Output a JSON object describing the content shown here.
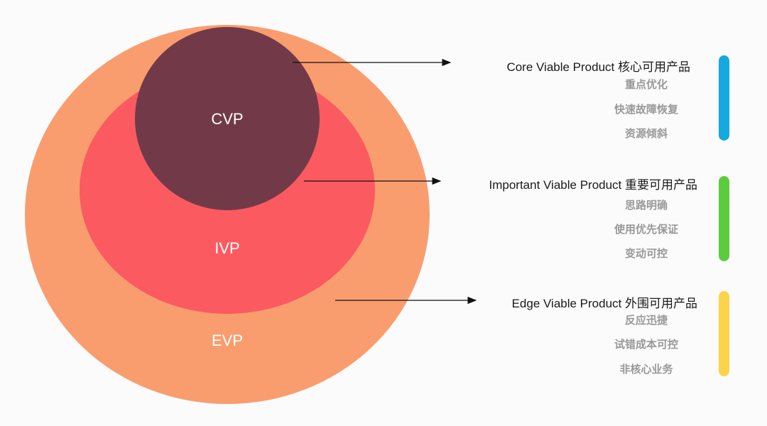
{
  "circles": [
    {
      "label": "EVP",
      "color": "#f99d6f"
    },
    {
      "label": "IVP",
      "color": "#fb5a60"
    },
    {
      "label": "CVP",
      "color": "#723a48"
    }
  ],
  "groups": [
    {
      "title": "Core Viable Product 核心可用产品",
      "items": [
        "重点优化",
        "快速故障恢复",
        "资源倾斜"
      ],
      "bar_color": "#14a9e0"
    },
    {
      "title": "Important Viable Product 重要可用产品",
      "items": [
        "思路明确",
        "使用优先保证",
        "变动可控"
      ],
      "bar_color": "#5ccc3f"
    },
    {
      "title": "Edge Viable Product 外围可用产品",
      "items": [
        "反应迅捷",
        "试错成本可控",
        "非核心业务"
      ],
      "bar_color": "#fcd44a"
    }
  ]
}
